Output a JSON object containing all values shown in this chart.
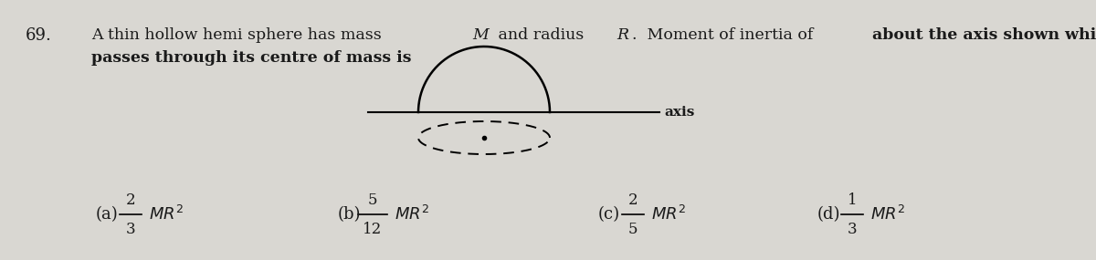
{
  "question_number": "69.",
  "line1_plain": "A thin hollow hemi sphere has mass ",
  "line1_italic1": "M",
  "line1_mid": " and radius ",
  "line1_italic2": "R",
  "line1_end_normal": ".  Moment of inertia of ",
  "line1_bold": "about the axis shown which",
  "line2_bold": "passes through its centre of mass is",
  "axis_label": "axis",
  "options": [
    {
      "label": "a",
      "numerator": "2",
      "denominator": "3"
    },
    {
      "label": "b",
      "numerator": "5",
      "denominator": "12"
    },
    {
      "label": "c",
      "numerator": "2",
      "denominator": "5"
    },
    {
      "label": "d",
      "numerator": "1",
      "denominator": "3"
    }
  ],
  "bg_color": "#d9d7d2",
  "text_color": "#1a1a1a",
  "fig_width": 12.0,
  "fig_height": 2.85,
  "dpi": 100
}
